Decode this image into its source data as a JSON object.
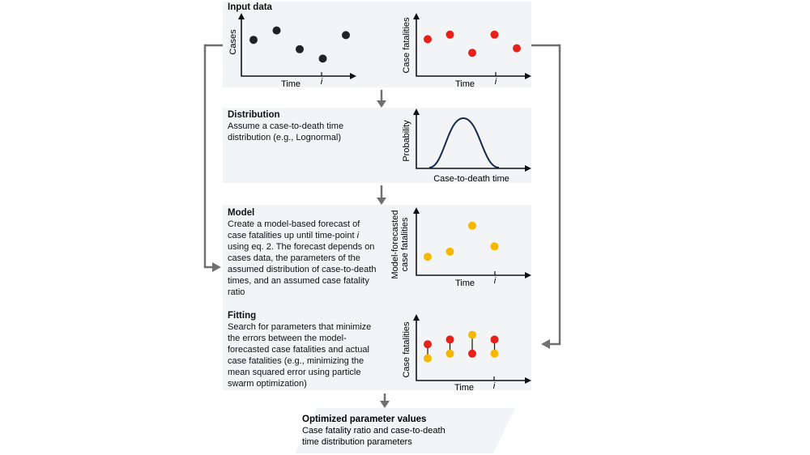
{
  "input_data": {
    "title": "Input data",
    "cases_chart": {
      "ylabel": "Cases",
      "xlabel": "Time",
      "tick": "i",
      "color": "#222222",
      "values": [
        3,
        4,
        2,
        1,
        3.5
      ]
    },
    "fatalities_chart": {
      "ylabel": "Case fatalities",
      "xlabel": "Time",
      "tick": "i",
      "color": "#e8201a",
      "values": [
        3,
        3.5,
        1.5,
        3.5,
        2
      ]
    }
  },
  "distribution": {
    "title": "Distribution",
    "body": "Assume a case-to-death time distribution (e.g., Lognormal)",
    "chart": {
      "ylabel": "Probability",
      "xlabel": "Case-to-death time",
      "color": "#13294b"
    }
  },
  "model": {
    "title": "Model",
    "body": "Create a model-based forecast of case fatalities up until time-point i using eq. 2. The forecast depends on cases data, the parameters of the assumed distribution of case-to-death times, and an assumed case fatality ratio",
    "chart": {
      "ylabel_line1": "Model-forecasted",
      "ylabel_line2": "case fatalities",
      "xlabel": "Time",
      "tick": "i",
      "color": "#f5b800",
      "values": [
        1,
        1.5,
        4,
        2
      ]
    }
  },
  "fitting": {
    "title": "Fitting",
    "body": "Search for parameters that minimize the errors between the model-forecasted case fatalities and actual case fatalities (e.g., minimizing the mean squared error using particle swarm optimization)",
    "chart": {
      "ylabel": "Case fatalities",
      "xlabel": "Time",
      "tick": "i",
      "actual_color": "#e8201a",
      "forecast_color": "#f5b800",
      "actual": [
        3,
        3.5,
        2,
        3.5
      ],
      "forecast": [
        1.5,
        2,
        4,
        2
      ]
    }
  },
  "output": {
    "title": "Optimized parameter values",
    "body": "Case fatality ratio and case-to-death time distribution parameters"
  },
  "colors": {
    "panel": "#f3f4f6",
    "arrow": "#707070"
  }
}
